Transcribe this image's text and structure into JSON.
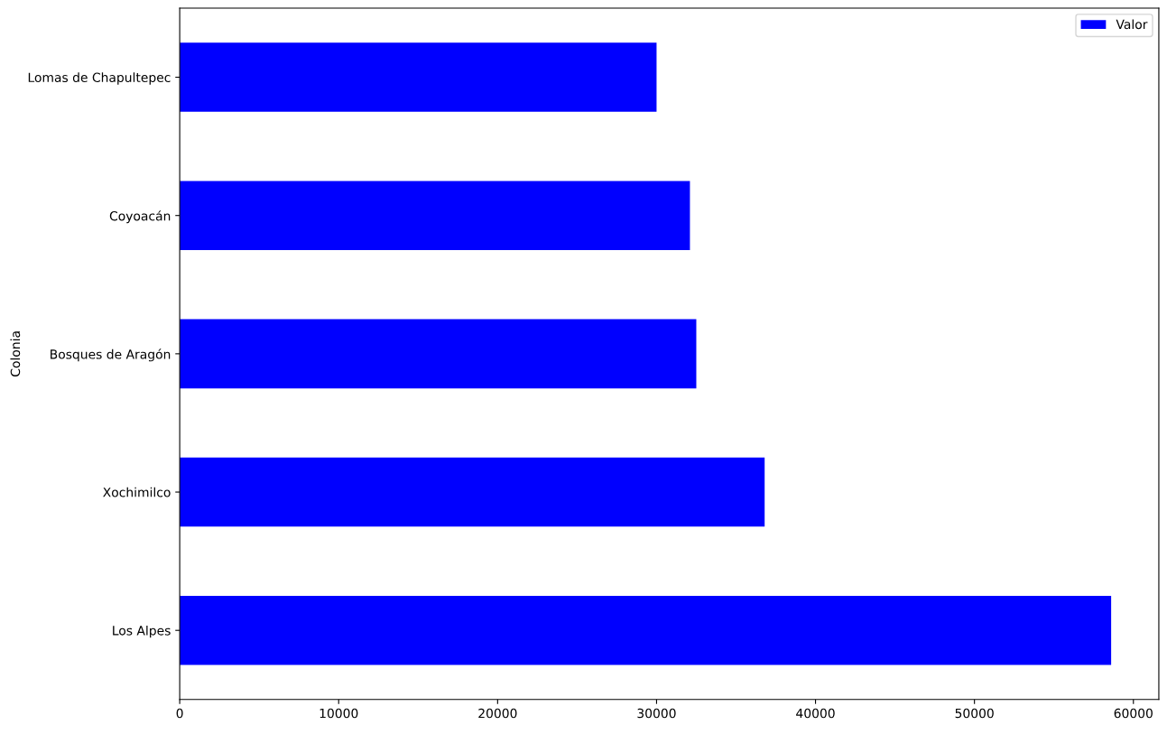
{
  "chart_data": {
    "type": "bar",
    "orientation": "horizontal",
    "ylabel": "Colonia",
    "categories": [
      "Lomas de Chapultepec",
      "Coyoacán",
      "Bosques de Aragón",
      "Xochimilco",
      "Los Alpes"
    ],
    "series": [
      {
        "name": "Valor",
        "color": "#0000ff",
        "values": [
          30000,
          32100,
          32500,
          36800,
          58600
        ]
      }
    ],
    "xlim": [
      0,
      61600
    ],
    "xticks": [
      0,
      10000,
      20000,
      30000,
      40000,
      50000,
      60000
    ],
    "legend": "top right",
    "grid": false
  }
}
